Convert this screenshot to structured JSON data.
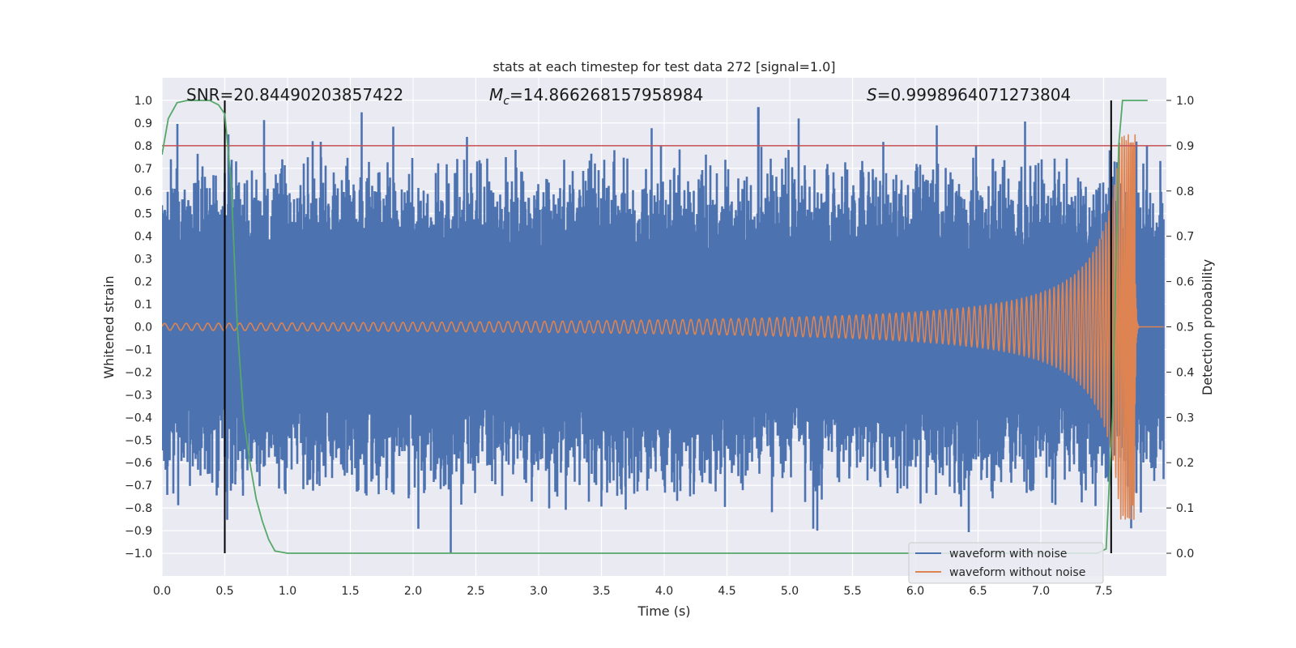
{
  "chart_data": {
    "type": "line",
    "title": "stats at each timestep for test data 272 [signal=1.0]",
    "xlabel": "Time (s)",
    "ylabel": "Whitened strain",
    "y2label": "Detection probability",
    "xlim": [
      0.0,
      8.0
    ],
    "ylim": [
      -1.1,
      1.1
    ],
    "y2lim": [
      -0.05,
      1.05
    ],
    "grid": true,
    "legend_position": "lower-right",
    "x_ticks": [
      "0.0",
      "0.5",
      "1.0",
      "1.5",
      "2.0",
      "2.5",
      "3.0",
      "3.5",
      "4.0",
      "4.5",
      "5.0",
      "5.5",
      "6.0",
      "6.5",
      "7.0",
      "7.5"
    ],
    "y_ticks": [
      "1.0",
      "0.9",
      "0.8",
      "0.7",
      "0.6",
      "0.5",
      "0.4",
      "0.3",
      "0.2",
      "0.1",
      "0.0",
      "−0.1",
      "−0.2",
      "−0.3",
      "−0.4",
      "−0.5",
      "−0.6",
      "−0.7",
      "−0.8",
      "−0.9",
      "−1.0"
    ],
    "y2_ticks": [
      "1.0",
      "0.9",
      "0.8",
      "0.7",
      "0.6",
      "0.5",
      "0.4",
      "0.3",
      "0.2",
      "0.1",
      "0.0"
    ],
    "annotations": {
      "snr": "SNR=20.84490203857422",
      "mc_symbol": "M",
      "mc_sub": "c",
      "mc_value": "=14.866268157958984",
      "s_symbol": "S",
      "s_value": "=0.9998964071273804"
    },
    "threshold_line": {
      "y2": 0.9,
      "color": "#c44e52"
    },
    "vertical_lines": [
      0.5,
      7.56
    ],
    "series": [
      {
        "name": "waveform with noise",
        "color": "#4c72b0",
        "description_range": [
          -1.0,
          0.97
        ],
        "peaks": [
          [
            0.07,
            0.74
          ],
          [
            0.53,
            0.85
          ],
          [
            1.2,
            0.82
          ],
          [
            2.3,
            -1.0
          ],
          [
            4.75,
            0.97
          ],
          [
            5.07,
            0.92
          ],
          [
            5.22,
            -0.9
          ],
          [
            6.17,
            0.89
          ],
          [
            7.55,
            0.78
          ],
          [
            7.72,
            -0.89
          ]
        ]
      },
      {
        "name": "waveform without noise",
        "color": "#dd8452",
        "chirp_start_amplitude": 0.015,
        "peak_time": 7.75,
        "peak_value": 0.85,
        "trough_value": -0.73
      },
      {
        "name": "",
        "color": "#55a868",
        "axis": "y2",
        "x": [
          0.0,
          0.05,
          0.12,
          0.2,
          0.3,
          0.38,
          0.45,
          0.5,
          0.55,
          0.6,
          0.65,
          0.7,
          0.75,
          0.8,
          0.85,
          0.9,
          1.0,
          7.0,
          7.45,
          7.52,
          7.57,
          7.62,
          7.65,
          7.7,
          7.85
        ],
        "y": [
          0.88,
          0.96,
          0.995,
          1.0,
          1.0,
          1.0,
          0.99,
          0.97,
          0.82,
          0.5,
          0.3,
          0.2,
          0.12,
          0.07,
          0.03,
          0.005,
          0.0,
          0.0,
          0.0,
          0.01,
          0.3,
          0.9,
          1.0,
          1.0,
          1.0
        ]
      }
    ]
  }
}
